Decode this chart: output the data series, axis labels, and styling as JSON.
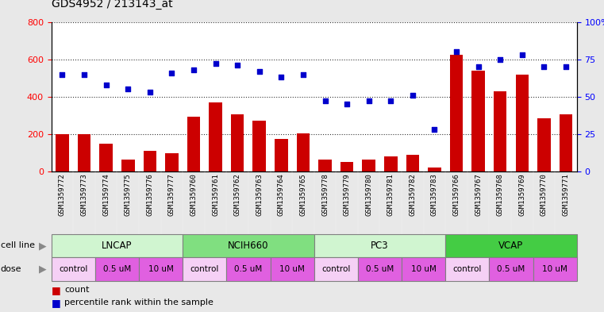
{
  "title": "GDS4952 / 213143_at",
  "samples": [
    "GSM1359772",
    "GSM1359773",
    "GSM1359774",
    "GSM1359775",
    "GSM1359776",
    "GSM1359777",
    "GSM1359760",
    "GSM1359761",
    "GSM1359762",
    "GSM1359763",
    "GSM1359764",
    "GSM1359765",
    "GSM1359778",
    "GSM1359779",
    "GSM1359780",
    "GSM1359781",
    "GSM1359782",
    "GSM1359783",
    "GSM1359766",
    "GSM1359767",
    "GSM1359768",
    "GSM1359769",
    "GSM1359770",
    "GSM1359771"
  ],
  "bar_values": [
    200,
    200,
    150,
    65,
    110,
    100,
    295,
    370,
    305,
    270,
    175,
    205,
    65,
    50,
    65,
    80,
    90,
    20,
    625,
    540,
    430,
    520,
    285,
    305
  ],
  "dot_values": [
    65,
    65,
    58,
    55,
    53,
    66,
    68,
    72,
    71,
    67,
    63,
    65,
    47,
    45,
    47,
    47,
    51,
    28,
    80,
    70,
    75,
    78,
    70,
    70
  ],
  "cell_lines": [
    {
      "name": "LNCAP",
      "start": 0,
      "end": 6,
      "color": "#d0f5d0"
    },
    {
      "name": "NCIH660",
      "start": 6,
      "end": 12,
      "color": "#80df80"
    },
    {
      "name": "PC3",
      "start": 12,
      "end": 18,
      "color": "#d0f5d0"
    },
    {
      "name": "VCAP",
      "start": 18,
      "end": 24,
      "color": "#44cc44"
    }
  ],
  "dose_groups": [
    {
      "name": "control",
      "start": 0,
      "end": 2,
      "color": "#f5d0f5"
    },
    {
      "name": "0.5 uM",
      "start": 2,
      "end": 4,
      "color": "#e060e0"
    },
    {
      "name": "10 uM",
      "start": 4,
      "end": 6,
      "color": "#e060e0"
    },
    {
      "name": "control",
      "start": 6,
      "end": 8,
      "color": "#f5d0f5"
    },
    {
      "name": "0.5 uM",
      "start": 8,
      "end": 10,
      "color": "#e060e0"
    },
    {
      "name": "10 uM",
      "start": 10,
      "end": 12,
      "color": "#e060e0"
    },
    {
      "name": "control",
      "start": 12,
      "end": 14,
      "color": "#f5d0f5"
    },
    {
      "name": "0.5 uM",
      "start": 14,
      "end": 16,
      "color": "#e060e0"
    },
    {
      "name": "10 uM",
      "start": 16,
      "end": 18,
      "color": "#e060e0"
    },
    {
      "name": "control",
      "start": 18,
      "end": 20,
      "color": "#f5d0f5"
    },
    {
      "name": "0.5 uM",
      "start": 20,
      "end": 22,
      "color": "#e060e0"
    },
    {
      "name": "10 uM",
      "start": 22,
      "end": 24,
      "color": "#e060e0"
    }
  ],
  "bar_color": "#cc0000",
  "dot_color": "#0000cc",
  "ylim_left": [
    0,
    800
  ],
  "ylim_right": [
    0,
    100
  ],
  "yticks_left": [
    0,
    200,
    400,
    600,
    800
  ],
  "yticks_right": [
    0,
    25,
    50,
    75,
    100
  ],
  "background_color": "#e8e8e8",
  "plot_bg": "#ffffff",
  "label_bg": "#d0d0d0"
}
